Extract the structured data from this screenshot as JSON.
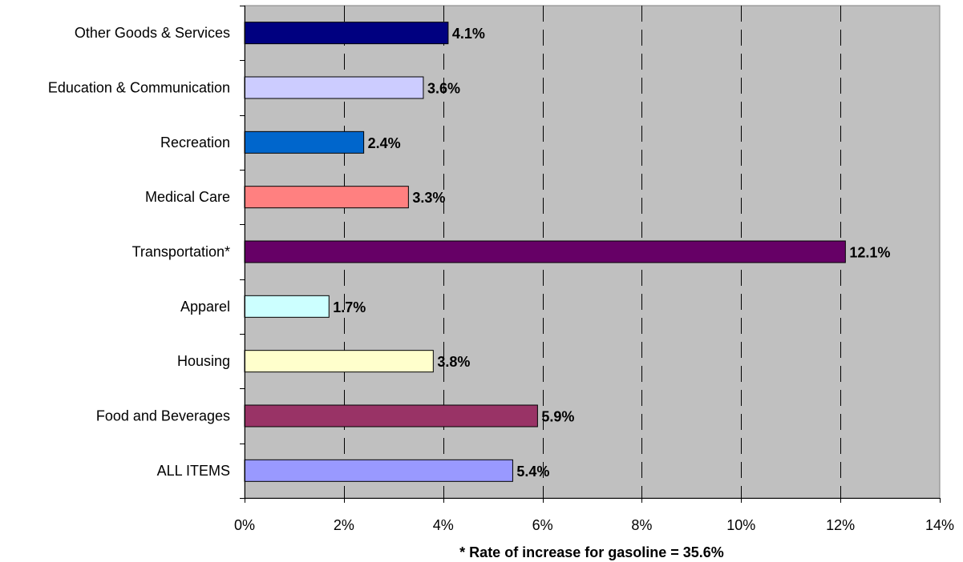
{
  "chart_data": {
    "type": "bar",
    "orientation": "horizontal",
    "categories": [
      "Other Goods & Services",
      "Education & Communication",
      "Recreation",
      "Medical Care",
      "Transportation*",
      "Apparel",
      "Housing",
      "Food and Beverages",
      "ALL ITEMS"
    ],
    "values": [
      4.1,
      3.6,
      2.4,
      3.3,
      12.1,
      1.7,
      3.8,
      5.9,
      5.4
    ],
    "data_labels": [
      "4.1%",
      "3.6%",
      "2.4%",
      "3.3%",
      "12.1%",
      "1.7%",
      "3.8%",
      "5.9%",
      "5.4%"
    ],
    "bar_colors": [
      "#000080",
      "#CCCCFF",
      "#0066CC",
      "#FF8080",
      "#660066",
      "#CCFFFF",
      "#FFFFCC",
      "#993366",
      "#9999FF"
    ],
    "xlim": [
      0,
      14
    ],
    "xticks": [
      0,
      2,
      4,
      6,
      8,
      10,
      12,
      14
    ],
    "xtick_labels": [
      "0%",
      "2%",
      "4%",
      "6%",
      "8%",
      "10%",
      "12%",
      "14%"
    ],
    "grid": "vertical dashed",
    "plot_background": "#C0C0C0",
    "legend": "none",
    "title": "",
    "xlabel": "* Rate of increase for gasoline = 35.6%",
    "ylabel": ""
  }
}
